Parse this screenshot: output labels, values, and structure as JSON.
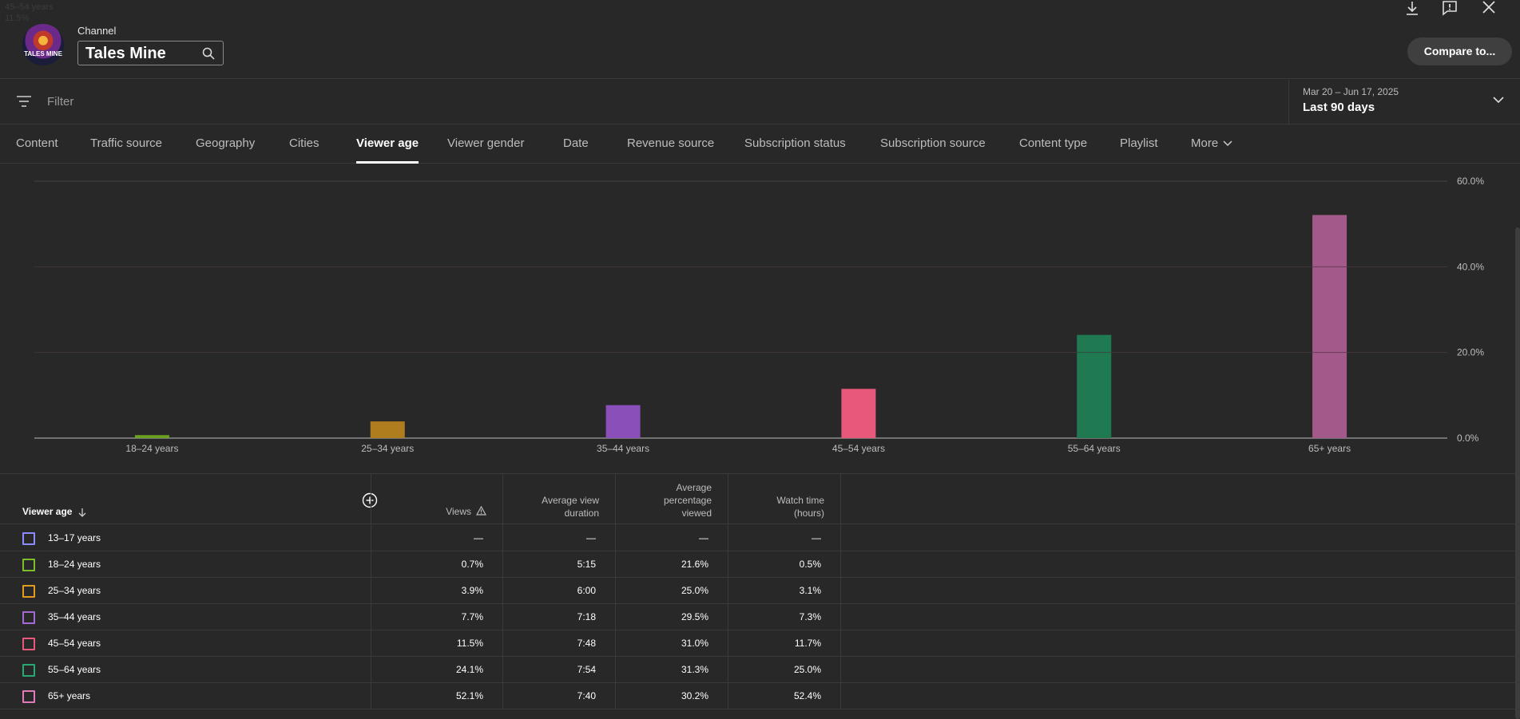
{
  "ghost_text": {
    "line1": "45–54 years",
    "line2": "11.5%"
  },
  "header": {
    "channel_label": "Channel",
    "channel_name": "Tales Mine",
    "logo_text": "TALES MINE",
    "compare_label": "Compare to...",
    "icons": [
      "download-icon",
      "feedback-icon",
      "close-icon",
      "search-icon"
    ]
  },
  "filter": {
    "placeholder": "Filter",
    "date_range": "Mar 20 – Jun 17, 2025",
    "date_label": "Last 90 days"
  },
  "tabs": [
    {
      "label": "Content",
      "active": false
    },
    {
      "label": "Traffic source",
      "active": false
    },
    {
      "label": "Geography",
      "active": false
    },
    {
      "label": "Cities",
      "active": false
    },
    {
      "label": "Viewer age",
      "active": true
    },
    {
      "label": "Viewer gender",
      "active": false
    },
    {
      "label": "Date",
      "active": false
    },
    {
      "label": "Revenue source",
      "active": false
    },
    {
      "label": "Subscription status",
      "active": false
    },
    {
      "label": "Subscription source",
      "active": false
    },
    {
      "label": "Content type",
      "active": false
    },
    {
      "label": "Playlist",
      "active": false
    },
    {
      "label": "More",
      "active": false
    }
  ],
  "chart_data": {
    "type": "bar",
    "categories": [
      "18–24 years",
      "25–34 years",
      "35–44 years",
      "45–54 years",
      "55–64 years",
      "65+ years"
    ],
    "values": [
      0.7,
      3.9,
      7.7,
      11.5,
      24.1,
      52.1
    ],
    "colors": [
      "#6aa121",
      "#b07d1e",
      "#8a4fb8",
      "#e8587a",
      "#1f7a52",
      "#a35a8a"
    ],
    "y_ticks": [
      "60.0%",
      "40.0%",
      "20.0%",
      "0.0%"
    ],
    "ylim": [
      0,
      60
    ],
    "grid": true
  },
  "table": {
    "headers": {
      "first": "Viewer age",
      "views": "Views",
      "avg_duration": [
        "Average view",
        "duration"
      ],
      "avg_pct": [
        "Average",
        "percentage",
        "viewed"
      ],
      "watch_time": [
        "Watch time",
        "(hours)"
      ]
    },
    "rows": [
      {
        "label": "13–17 years",
        "color": "#8a8cff",
        "views": "—",
        "avg_duration": "—",
        "avg_pct": "—",
        "watch_time": "—"
      },
      {
        "label": "18–24 years",
        "color": "#7bbf2a",
        "views": "0.7%",
        "avg_duration": "5:15",
        "avg_pct": "21.6%",
        "watch_time": "0.5%"
      },
      {
        "label": "25–34 years",
        "color": "#e39b1e",
        "views": "3.9%",
        "avg_duration": "6:00",
        "avg_pct": "25.0%",
        "watch_time": "3.1%"
      },
      {
        "label": "35–44 years",
        "color": "#a66ad6",
        "views": "7.7%",
        "avg_duration": "7:18",
        "avg_pct": "29.5%",
        "watch_time": "7.3%"
      },
      {
        "label": "45–54 years",
        "color": "#e8587a",
        "views": "11.5%",
        "avg_duration": "7:48",
        "avg_pct": "31.0%",
        "watch_time": "11.7%"
      },
      {
        "label": "55–64 years",
        "color": "#2aa874",
        "views": "24.1%",
        "avg_duration": "7:54",
        "avg_pct": "31.3%",
        "watch_time": "25.0%"
      },
      {
        "label": "65+ years",
        "color": "#e07ab8",
        "views": "52.1%",
        "avg_duration": "7:40",
        "avg_pct": "30.2%",
        "watch_time": "52.4%"
      }
    ]
  }
}
